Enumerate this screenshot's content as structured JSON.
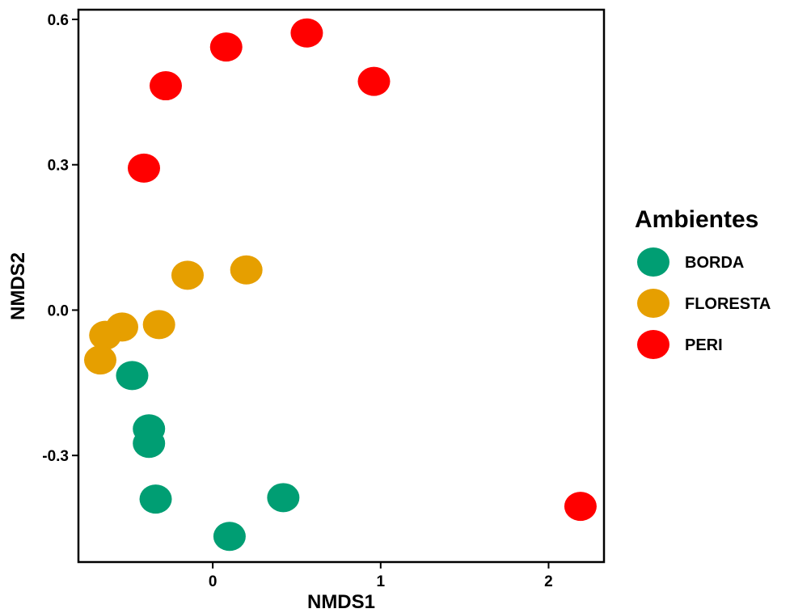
{
  "chart_data": {
    "type": "scatter",
    "xlabel": "NMDS1",
    "ylabel": "NMDS2",
    "xlim": [
      -0.8,
      2.33
    ],
    "ylim": [
      -0.52,
      0.62
    ],
    "x_ticks": [
      {
        "value": 0,
        "label": "0"
      },
      {
        "value": 1,
        "label": "1"
      },
      {
        "value": 2,
        "label": "2"
      }
    ],
    "y_ticks": [
      {
        "value": 0.6,
        "label": "0.6"
      },
      {
        "value": 0.3,
        "label": "0.3"
      },
      {
        "value": 0.0,
        "label": "0.0"
      },
      {
        "value": -0.3,
        "label": "-0.3"
      }
    ],
    "grid": false,
    "legend": {
      "title": "Ambientes",
      "placement": "right",
      "entries": [
        {
          "name": "BORDA",
          "color": "#009E73"
        },
        {
          "name": "FLORESTA",
          "color": "#E69F00"
        },
        {
          "name": "PERI",
          "color": "#FF0000"
        }
      ]
    },
    "series": [
      {
        "name": "BORDA",
        "color": "#009E73",
        "points": [
          {
            "x": -0.48,
            "y": -0.135
          },
          {
            "x": -0.38,
            "y": -0.245
          },
          {
            "x": -0.38,
            "y": -0.275
          },
          {
            "x": -0.34,
            "y": -0.39
          },
          {
            "x": 0.42,
            "y": -0.387
          },
          {
            "x": 0.1,
            "y": -0.467
          }
        ]
      },
      {
        "name": "FLORESTA",
        "color": "#E69F00",
        "points": [
          {
            "x": -0.15,
            "y": 0.072
          },
          {
            "x": 0.2,
            "y": 0.083
          },
          {
            "x": -0.32,
            "y": -0.03
          },
          {
            "x": -0.54,
            "y": -0.035
          },
          {
            "x": -0.64,
            "y": -0.052
          },
          {
            "x": -0.67,
            "y": -0.103
          }
        ]
      },
      {
        "name": "PERI",
        "color": "#FF0000",
        "points": [
          {
            "x": 0.56,
            "y": 0.572
          },
          {
            "x": 0.08,
            "y": 0.543
          },
          {
            "x": 0.96,
            "y": 0.472
          },
          {
            "x": -0.28,
            "y": 0.463
          },
          {
            "x": -0.41,
            "y": 0.293
          },
          {
            "x": 2.19,
            "y": -0.405
          }
        ]
      }
    ]
  }
}
